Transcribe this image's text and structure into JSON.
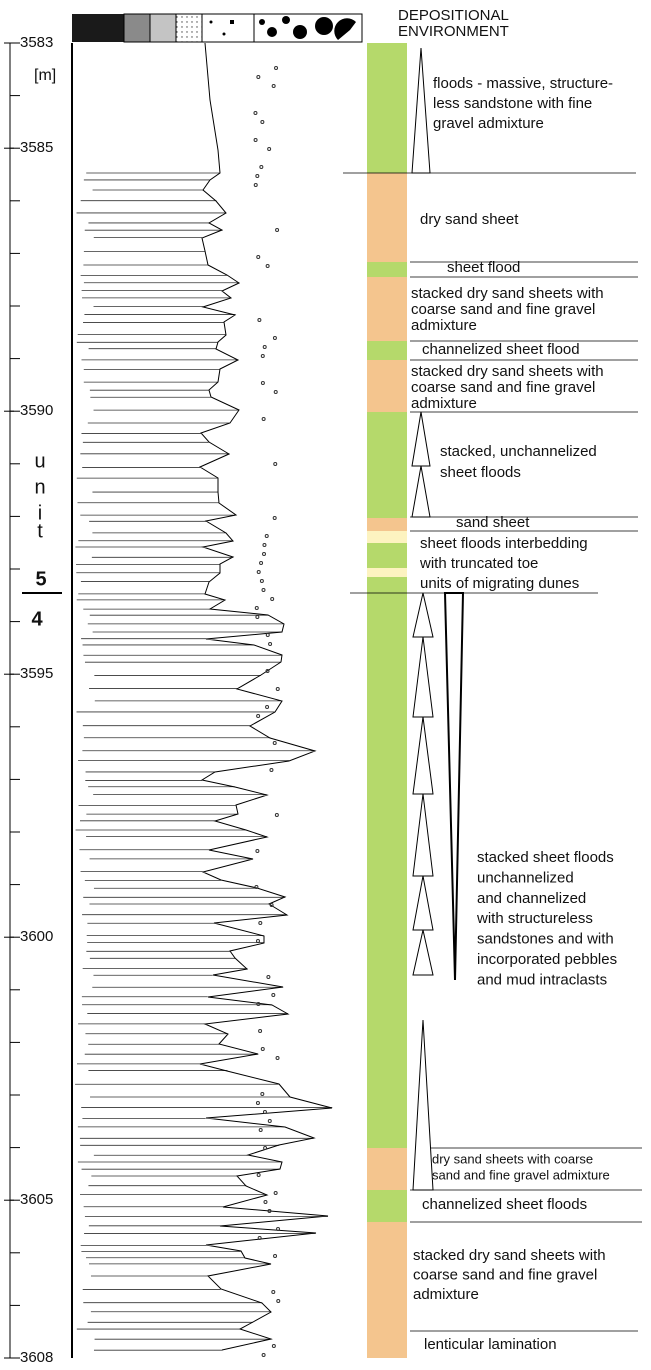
{
  "header": {
    "title_lines": [
      "DEPOSITIONAL",
      "ENVIRONMENT"
    ]
  },
  "depth_axis": {
    "unit": "[m]",
    "ticks": [
      3583,
      3585,
      3590,
      3595,
      3600,
      3605,
      3608
    ]
  },
  "units": {
    "upper_letters": [
      "u",
      "n",
      "i",
      "t"
    ],
    "upper": "5",
    "lower": "4"
  },
  "environments": [
    {
      "lines": [
        "floods - massive, structure-",
        "less sandstone with fine",
        "gravel admixture"
      ]
    },
    {
      "lines": [
        "dry sand sheet"
      ]
    },
    {
      "lines": [
        "sheet flood"
      ]
    },
    {
      "lines": [
        "stacked dry sand sheets with",
        "coarse sand and fine gravel",
        "admixture"
      ]
    },
    {
      "lines": [
        "channelized sheet flood"
      ]
    },
    {
      "lines": [
        "stacked dry sand sheets with",
        "coarse sand and fine gravel",
        "admixture"
      ]
    },
    {
      "lines": [
        "stacked, unchannelized",
        "sheet floods"
      ]
    },
    {
      "lines": [
        "sand sheet"
      ]
    },
    {
      "lines": [
        "sheet floods interbedding",
        "with truncated toe",
        "units of migrating dunes"
      ]
    },
    {
      "lines": [
        "stacked sheet floods",
        "unchannelized",
        "and channelized",
        "with structureless",
        "sandstones and with",
        "incorporated pebbles",
        "and mud intraclasts"
      ]
    },
    {
      "lines": [
        "dry sand sheets with coarse",
        "sand and fine gravel admixture"
      ]
    },
    {
      "lines": [
        "channelized sheet floods"
      ]
    },
    {
      "lines": [
        "stacked dry sand sheets with",
        "coarse sand and fine gravel",
        "admixture"
      ]
    },
    {
      "lines": [
        "lenticular lamination"
      ]
    }
  ]
}
